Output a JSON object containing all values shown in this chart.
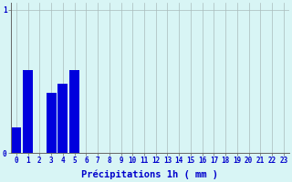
{
  "values": [
    0.18,
    0.58,
    0.0,
    0.42,
    0.48,
    0.58,
    0,
    0,
    0,
    0,
    0,
    0,
    0,
    0,
    0,
    0,
    0,
    0,
    0,
    0,
    0,
    0,
    0,
    0
  ],
  "bar_color": "#0000dd",
  "background_color": "#d8f5f5",
  "grid_color": "#aabbbb",
  "axis_color": "#666666",
  "xlabel": "Précipitations 1h ( mm )",
  "xlabel_color": "#0000cc",
  "ylim": [
    0,
    1.05
  ],
  "xlim": [
    -0.5,
    23.5
  ],
  "yticks": [
    0,
    1
  ],
  "xticks": [
    0,
    1,
    2,
    3,
    4,
    5,
    6,
    7,
    8,
    9,
    10,
    11,
    12,
    13,
    14,
    15,
    16,
    17,
    18,
    19,
    20,
    21,
    22,
    23
  ],
  "tick_color": "#0000cc",
  "tick_fontsize": 5.5,
  "xlabel_fontsize": 7.5,
  "bar_width": 0.85
}
